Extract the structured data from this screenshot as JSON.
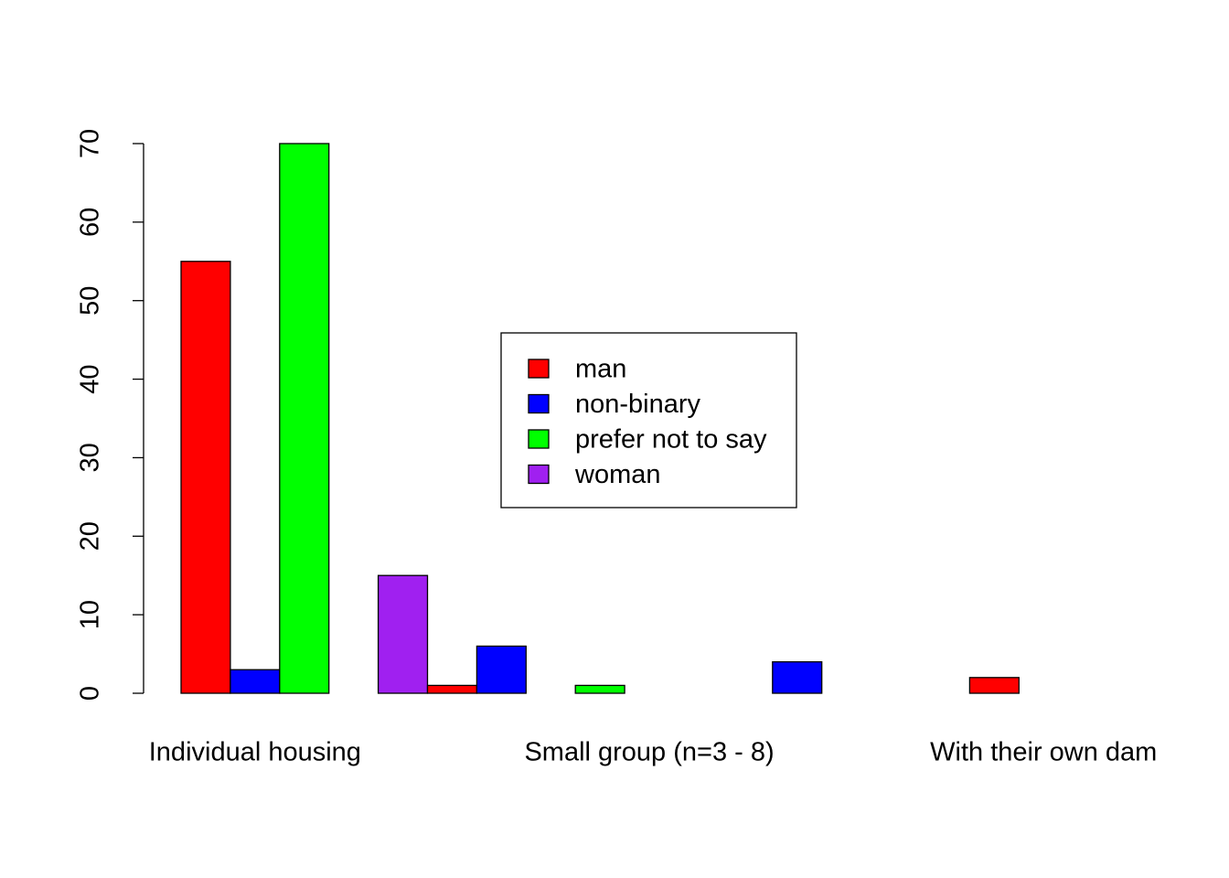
{
  "chart_data": {
    "type": "bar",
    "categories": [
      "Individual housing",
      null,
      "Small group (n=3 - 8)",
      null,
      "With their own dam"
    ],
    "series": [
      {
        "values": [
          55,
          15,
          1,
          4,
          2
        ],
        "colors": [
          "#ff0000",
          "#a020f0",
          "#00ff00",
          "#0000ff",
          "#ff0000"
        ]
      },
      {
        "values": [
          3,
          1,
          0,
          0,
          0
        ],
        "colors": [
          "#0000ff",
          "#ff0000",
          "#a020f0",
          "#00ff00",
          "#0000ff"
        ]
      },
      {
        "values": [
          70,
          6,
          0,
          0,
          0
        ],
        "colors": [
          "#00ff00",
          "#0000ff",
          "#ff0000",
          "#a020f0",
          "#00ff00"
        ]
      }
    ],
    "ylim": [
      0,
      70
    ],
    "yticks": [
      0,
      10,
      20,
      30,
      40,
      50,
      60,
      70
    ],
    "legend": {
      "position": "center",
      "items": [
        {
          "name": "man",
          "color": "#ff0000"
        },
        {
          "name": "non-binary",
          "color": "#0000ff"
        },
        {
          "name": "prefer not to say",
          "color": "#00ff00"
        },
        {
          "name": "woman",
          "color": "#a020f0"
        }
      ]
    }
  }
}
